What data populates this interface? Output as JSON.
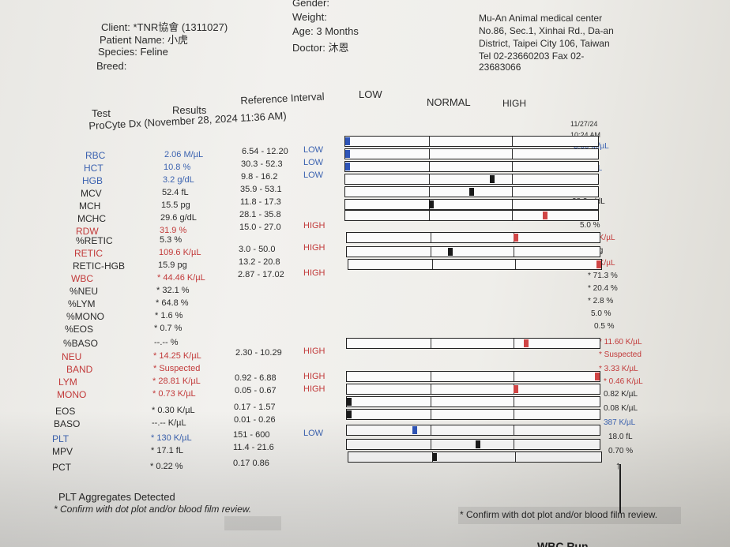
{
  "header": {
    "client": "Client: *TNR協會 (1311027)",
    "patient": "Patient Name: 小虎",
    "species": "Species: Feline",
    "breed": "Breed:",
    "gender": "Gender:",
    "weight": "Weight:",
    "age": "Age: 3 Months",
    "doctor": "Doctor: 沐恩",
    "clinic": [
      "Mu-An Animal medical center",
      "No.86, Sec.1, Xinhai Rd., Da-an",
      "District, Taipei City 106, Taiwan",
      "Tel 02-23660203  Fax 02-",
      "23683066"
    ]
  },
  "columns": {
    "test": "Test",
    "results": "Results",
    "ref": "Reference Interval",
    "low": "LOW",
    "normal": "NORMAL",
    "high": "HIGH"
  },
  "analyzer": "ProCyte Dx (November 28, 2024 11:36 AM)",
  "prev": {
    "date": "11/27/24",
    "time": "10:24 AM"
  },
  "rows": [
    {
      "test": "RBC",
      "result": "2.06 M/µL",
      "ref": "6.54 - 12.20",
      "flag": "LOW",
      "prev": "3.00 M/µL",
      "color": "#3b62b0"
    },
    {
      "test": "HCT",
      "result": "10.8 %",
      "ref": "30.3 - 52.3",
      "flag": "LOW",
      "prev": "15.2 %",
      "color": "#3b62b0"
    },
    {
      "test": "HGB",
      "result": "3.2 g/dL",
      "ref": "9.8 - 16.2",
      "flag": "LOW",
      "prev": "4.3 g/dL",
      "color": "#3b62b0"
    },
    {
      "test": "MCV",
      "result": "52.4 fL",
      "ref": "35.9 - 53.1",
      "flag": "",
      "prev": "50.7 fL",
      "color": "#2b2b2b"
    },
    {
      "test": "MCH",
      "result": "15.5 pg",
      "ref": "11.8 - 17.3",
      "flag": "",
      "prev": "14.3 pg",
      "color": "#2b2b2b"
    },
    {
      "test": "MCHC",
      "result": "29.6 g/dL",
      "ref": "28.1 - 35.8",
      "flag": "",
      "prev": "28.3 g/dL",
      "color": "#2b2b2b"
    },
    {
      "test": "RDW",
      "result": "31.9 %",
      "ref": "15.0 - 27.0",
      "flag": "HIGH",
      "prev": "35.8 %",
      "color": "#c23a3a"
    },
    {
      "test": "%RETIC",
      "result": "5.3 %",
      "ref": "",
      "flag": "",
      "prev": "5.0 %",
      "color": "#2b2b2b"
    },
    {
      "test": "RETIC",
      "result": "109.6 K/µL",
      "ref": "3.0 - 50.0",
      "flag": "HIGH",
      "prev": "148.8 K/µL",
      "color": "#c23a3a"
    },
    {
      "test": "RETIC-HGB",
      "result": "15.9 pg",
      "ref": "13.2 - 20.8",
      "flag": "",
      "prev": "15.8 pg",
      "color": "#2b2b2b"
    },
    {
      "test": "WBC",
      "result": "* 44.46 K/µL",
      "ref": "2.87 - 17.02",
      "flag": "HIGH",
      "prev": "16.29 K/µL",
      "color": "#c23a3a"
    },
    {
      "test": "%NEU",
      "result": "* 32.1 %",
      "ref": "",
      "flag": "",
      "prev": "* 71.3 %",
      "color": "#2b2b2b"
    },
    {
      "test": "%LYM",
      "result": "* 64.8 %",
      "ref": "",
      "flag": "",
      "prev": "* 20.4 %",
      "color": "#2b2b2b"
    },
    {
      "test": "%MONO",
      "result": "* 1.6 %",
      "ref": "",
      "flag": "",
      "prev": "* 2.8 %",
      "color": "#2b2b2b"
    },
    {
      "test": "%EOS",
      "result": "* 0.7 %",
      "ref": "",
      "flag": "",
      "prev": "5.0 %",
      "color": "#2b2b2b"
    },
    {
      "test": "%BASO",
      "result": "--.-- %",
      "ref": "",
      "flag": "",
      "prev": "0.5 %",
      "color": "#2b2b2b"
    },
    {
      "test": "NEU",
      "result": "* 14.25 K/µL",
      "ref": "2.30 - 10.29",
      "flag": "HIGH",
      "prev": "* 11.60 K/µL",
      "color": "#c23a3a"
    },
    {
      "test": "BAND",
      "result": "* Suspected",
      "ref": "",
      "flag": "",
      "prev": "* Suspected",
      "color": "#c23a3a"
    },
    {
      "test": "LYM",
      "result": "* 28.81 K/µL",
      "ref": "0.92 - 6.88",
      "flag": "HIGH",
      "prev": "* 3.33 K/µL",
      "color": "#c23a3a"
    },
    {
      "test": "MONO",
      "result": "* 0.73 K/µL",
      "ref": "0.05 - 0.67",
      "flag": "HIGH",
      "prev": "* 0.46 K/µL",
      "color": "#c23a3a"
    },
    {
      "test": "EOS",
      "result": "* 0.30 K/µL",
      "ref": "0.17 - 1.57",
      "flag": "",
      "prev": "0.82 K/µL",
      "color": "#2b2b2b"
    },
    {
      "test": "BASO",
      "result": "--.-- K/µL",
      "ref": "0.01 - 0.26",
      "flag": "",
      "prev": "0.08 K/µL",
      "color": "#2b2b2b"
    },
    {
      "test": "PLT",
      "result": "* 130 K/µL",
      "ref": "151 - 600",
      "flag": "LOW",
      "prev": "387 K/µL",
      "color": "#3b62b0"
    },
    {
      "test": "MPV",
      "result": "* 17.1 fL",
      "ref": "11.4 - 21.6",
      "flag": "",
      "prev": "18.0 fL",
      "color": "#2b2b2b"
    },
    {
      "test": "PCT",
      "result": "* 0.22 %",
      "ref": "0.17  0.86",
      "flag": "",
      "prev": "0.70 %",
      "color": "#2b2b2b"
    }
  ],
  "markers": [
    {
      "row": "RBC",
      "fraction": 0.0,
      "color": "#2f55b8"
    },
    {
      "row": "HCT",
      "fraction": 0.0,
      "color": "#2f55b8"
    },
    {
      "row": "HGB",
      "fraction": 0.0,
      "color": "#2f55b8"
    },
    {
      "row": "MCV",
      "fraction": 0.58,
      "color": "#1a1a1a"
    },
    {
      "row": "MCH",
      "fraction": 0.5,
      "color": "#1a1a1a"
    },
    {
      "row": "MCHC",
      "fraction": 0.34,
      "color": "#1a1a1a"
    },
    {
      "row": "RDW",
      "fraction": 0.79,
      "color": "#d04545"
    },
    {
      "row": "RETIC",
      "fraction": 0.67,
      "color": "#d04545"
    },
    {
      "row": "RETIC-HGB",
      "fraction": 0.41,
      "color": "#1a1a1a"
    },
    {
      "row": "WBC",
      "fraction": 1.0,
      "color": "#d04545"
    },
    {
      "row": "NEU",
      "fraction": 0.71,
      "color": "#d04545"
    },
    {
      "row": "LYM",
      "fraction": 1.0,
      "color": "#d04545"
    },
    {
      "row": "MONO",
      "fraction": 0.67,
      "color": "#d04545"
    },
    {
      "row": "EOS",
      "fraction": 0.0,
      "color": "#1a1a1a"
    },
    {
      "row": "BASO",
      "fraction": 0.0,
      "color": "#1a1a1a"
    },
    {
      "row": "PLT",
      "fraction": 0.27,
      "color": "#2f55b8"
    },
    {
      "row": "MPV",
      "fraction": 0.52,
      "color": "#1a1a1a"
    },
    {
      "row": "PCT",
      "fraction": 0.34,
      "color": "#1a1a1a"
    }
  ],
  "footer": {
    "plt_note": "PLT Aggregates Detected",
    "confirm1": "* Confirm with dot plot and/or blood film review.",
    "confirm2": "* Confirm with dot plot and/or blood film review.",
    "cut": "WBC Run"
  }
}
